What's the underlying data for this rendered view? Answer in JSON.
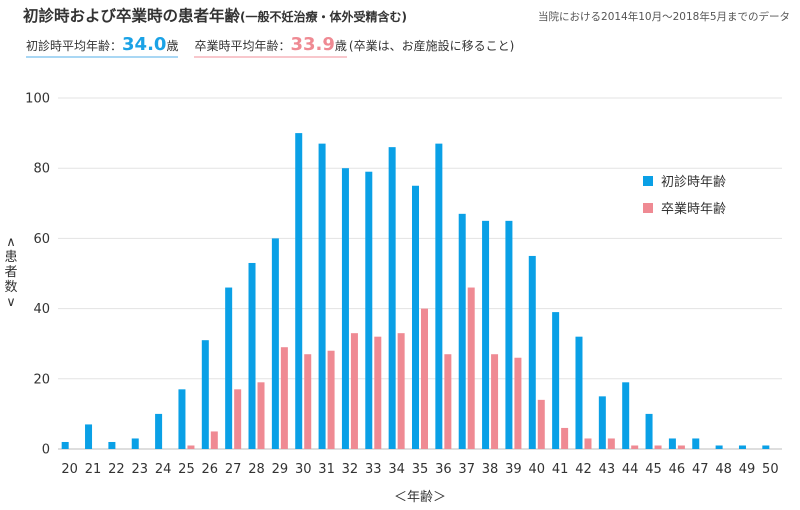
{
  "header": {
    "title": "初診時および卒業時の患者年齢",
    "title_note": "(一般不妊治療・体外受精含む)",
    "period": "当院における2014年10月～2018年5月までのデータ"
  },
  "averages": {
    "initial_label": "初診時平均年齢：",
    "initial_value": "34.0",
    "initial_unit": "歳",
    "graduation_label": "卒業時平均年齢：",
    "graduation_value": "33.9",
    "graduation_unit": "歳",
    "graduation_note": "(卒業は、お産施設に移ること)"
  },
  "colors": {
    "initial": "#0aa0e6",
    "graduation": "#ef8a93"
  },
  "chart_data": {
    "type": "bar",
    "categories": [
      "20",
      "21",
      "22",
      "23",
      "24",
      "25",
      "26",
      "27",
      "28",
      "29",
      "30",
      "31",
      "32",
      "33",
      "34",
      "35",
      "36",
      "37",
      "38",
      "39",
      "40",
      "41",
      "42",
      "43",
      "44",
      "45",
      "46",
      "47",
      "48",
      "49",
      "50"
    ],
    "series": [
      {
        "name": "初診時年齢",
        "values": [
          2,
          7,
          2,
          3,
          10,
          17,
          31,
          46,
          53,
          60,
          90,
          87,
          80,
          79,
          86,
          75,
          87,
          67,
          65,
          65,
          55,
          39,
          32,
          15,
          19,
          10,
          3,
          3,
          1,
          1,
          1
        ]
      },
      {
        "name": "卒業時年齢",
        "values": [
          0,
          0,
          0,
          0,
          0,
          1,
          5,
          17,
          19,
          29,
          27,
          28,
          33,
          32,
          33,
          40,
          27,
          46,
          27,
          26,
          14,
          6,
          3,
          3,
          1,
          1,
          1,
          0,
          0,
          0,
          0
        ]
      }
    ],
    "yticks": [
      "0",
      "20",
      "40",
      "60",
      "80",
      "100"
    ],
    "ylim": [
      0,
      100
    ],
    "xlabel": "＜年齢＞",
    "ylabel": "＜患者数＞",
    "ylabel_chars": [
      "∧",
      "患",
      "者",
      "数",
      "∨"
    ],
    "legend_position": "right",
    "grid": true
  }
}
